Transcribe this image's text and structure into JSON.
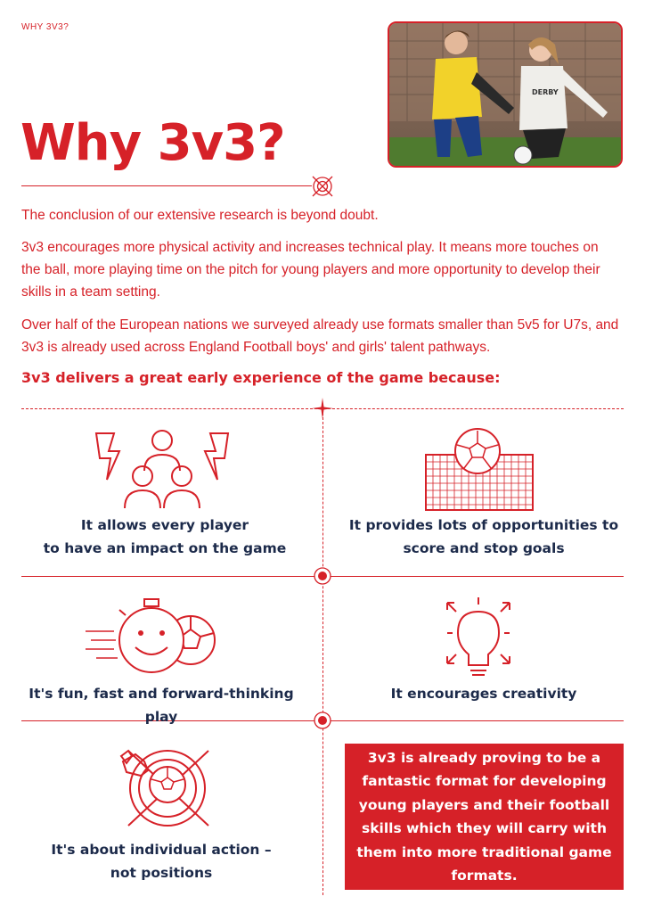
{
  "header": {
    "tag": "WHY 3V3?"
  },
  "title": "Why 3v3?",
  "intro": {
    "p1": "The conclusion of our extensive research is beyond doubt.",
    "p2": "3v3 encourages more physical activity and increases technical play. It means more touches on the ball, more playing time on the pitch for young players and more opportunity to develop their skills in a team setting.",
    "p3": "Over half of the European nations we surveyed already use formats smaller than 5v5 for U7s, and 3v3 is already used across England Football boys' and girls' talent pathways.",
    "lead": "3v3 delivers a great early experience of the game because:"
  },
  "benefits": [
    {
      "icon": "players-impact-icon",
      "line1": "It allows every player",
      "line2": "to have an impact on the game"
    },
    {
      "icon": "goal-ball-icon",
      "line1": "It provides lots of opportunities to",
      "line2": "score and stop goals"
    },
    {
      "icon": "stopwatch-smiley-ball-icon",
      "line1": "It's fun, fast and forward-thinking play"
    },
    {
      "icon": "lightbulb-icon",
      "line1": "It encourages creativity"
    },
    {
      "icon": "ball-boot-target-icon",
      "line1": "It's about individual action –",
      "line2": "not positions"
    }
  ],
  "callout": "3v3 is already proving to be a fantastic format for developing young players and their football skills which they will carry with them into more traditional game formats.",
  "colors": {
    "accent": "#d62128",
    "navy": "#1c2a4a"
  }
}
